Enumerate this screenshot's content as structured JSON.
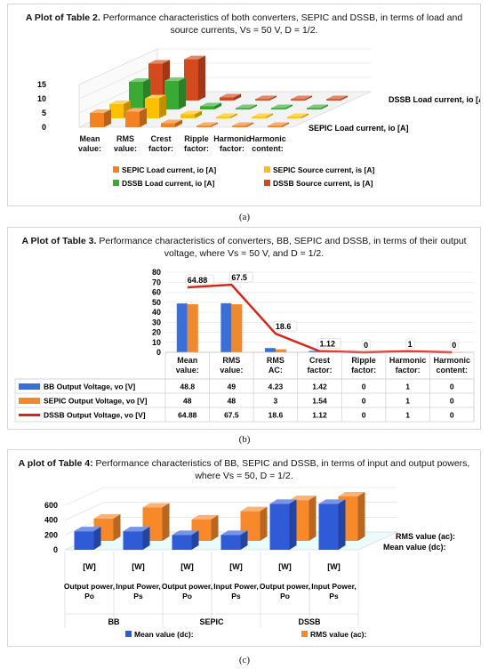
{
  "captions": {
    "a": "(a)",
    "b": "(b)",
    "c": "(c)"
  },
  "panel_a": {
    "title_bold": "A Plot of Table 2.",
    "title_rest": " Performance characteristics of both converters, SEPIC and DSSB, in terms of load and source currents, Vs = 50 V, D = 1/2.",
    "chart_data": {
      "type": "bar",
      "categories": [
        "Mean value:",
        "RMS value:",
        "Crest factor:",
        "Ripple factor:",
        "Harmonic factor:",
        "Harmonic content:"
      ],
      "series": [
        {
          "name": "SEPIC Load current, io [A]",
          "color": "#f58220",
          "values": [
            5,
            5.5,
            1.4,
            0.2,
            0.1,
            0.1
          ]
        },
        {
          "name": "SEPIC Source current, is [A]",
          "color": "#ffc000",
          "values": [
            5,
            7,
            1.4,
            0.3,
            0.2,
            0.2
          ]
        },
        {
          "name": "DSSB Load current, io [A]",
          "color": "#3aaa35",
          "values": [
            9.7,
            10,
            1.1,
            0.1,
            0.1,
            0.1
          ]
        },
        {
          "name": "DSSB Source current, is [A]",
          "color": "#d24a1e",
          "values": [
            13,
            14.5,
            1.1,
            0.2,
            0.2,
            0.2
          ]
        }
      ],
      "depth_labels": [
        "SEPIC Load current, io [A]",
        "DSSB Load current, io [A]"
      ],
      "yticks": [
        "0",
        "5",
        "10",
        "15"
      ],
      "ylim": [
        0,
        15
      ]
    }
  },
  "panel_b": {
    "title_bold": "A Plot of Table 3.",
    "title_rest": " Performance characteristics of converters, BB, SEPIC and DSSB, in terms of their output voltage, where Vs = 50 V, and D = 1/2.",
    "chart_data": {
      "type": "bar",
      "categories": [
        "Mean value:",
        "RMS value:",
        "RMS AC:",
        "Crest factor:",
        "Ripple factor:",
        "Harmonic factor:",
        "Harmonic content:"
      ],
      "series": [
        {
          "name": "BB Output Voltage, vo [V]",
          "color": "#3b6fd8",
          "kind": "bar",
          "values": [
            "48.8",
            "49",
            "4.23",
            "1.42",
            "0",
            "1",
            "0"
          ]
        },
        {
          "name": "SEPIC Output Voltage, vo [V]",
          "color": "#f0892b",
          "kind": "bar",
          "values": [
            "48",
            "48",
            "3",
            "1.54",
            "0",
            "1",
            "0"
          ]
        },
        {
          "name": "DSSB Output Voltage, vo [V]",
          "color": "#d7261e",
          "kind": "line",
          "values": [
            "64.88",
            "67.5",
            "18.6",
            "1.12",
            "0",
            "1",
            "0"
          ]
        }
      ],
      "line_labels": [
        "64.88",
        "67.5",
        "18.6",
        "1.12",
        "0",
        "1",
        "0"
      ],
      "yticks": [
        "0",
        "10",
        "20",
        "30",
        "40",
        "50",
        "60",
        "70",
        "80"
      ],
      "ylim": [
        0,
        80
      ]
    }
  },
  "panel_c": {
    "title_bold": "A plot of Table 4:",
    "title_rest": " Performance characteristics of BB, SEPIC and DSSB, in terms of input and output powers, where Vs = 50, D = 1/2.",
    "chart_data": {
      "type": "bar",
      "categories": [
        "Output power, Po",
        "Input Power, Ps",
        "Output power, Po",
        "Input Power, Ps",
        "Output power, Po",
        "Input Power, Ps"
      ],
      "unit_labels": [
        "[W]",
        "[W]",
        "[W]",
        "[W]",
        "[W]",
        "[W]"
      ],
      "groups": [
        "BB",
        "SEPIC",
        "DSSB"
      ],
      "series": [
        {
          "name": "Mean value (dc):",
          "color": "#2f5bd6",
          "values": [
            250,
            250,
            200,
            200,
            620,
            620
          ]
        },
        {
          "name": "RMS value (ac):",
          "color": "#f7892a",
          "values": [
            300,
            450,
            290,
            400,
            550,
            600
          ]
        }
      ],
      "depth_labels": [
        "RMS value (ac):",
        "Mean value (dc):"
      ],
      "yticks": [
        "0",
        "200",
        "400",
        "600"
      ],
      "ylim": [
        0,
        600
      ]
    }
  }
}
